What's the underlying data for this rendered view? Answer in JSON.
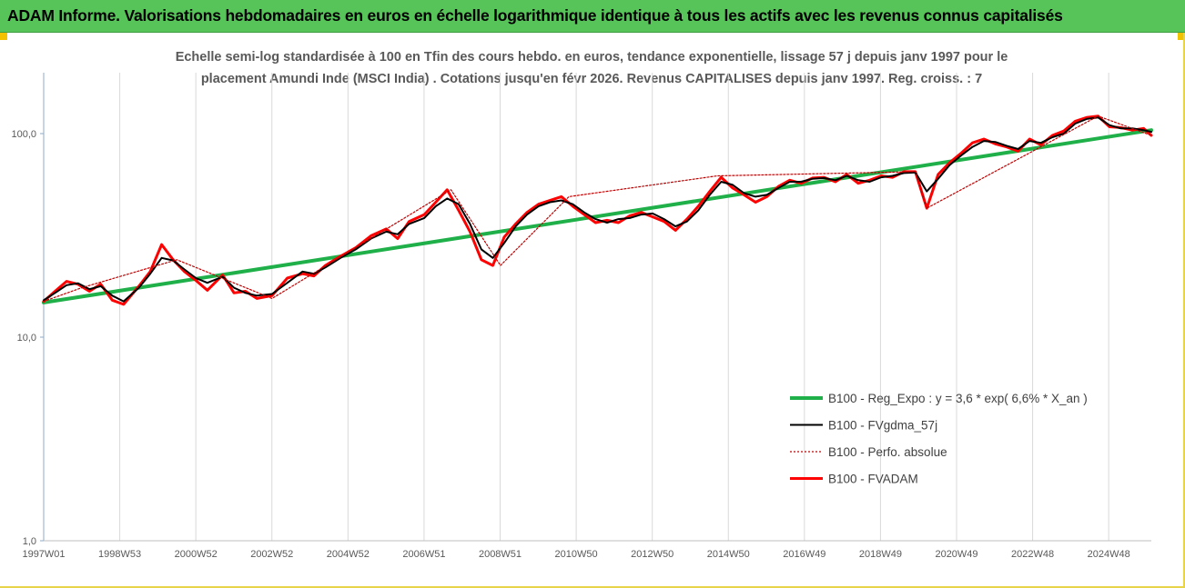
{
  "banner": {
    "title": "ADAM Informe. Valorisations hebdomadaires en euros en échelle logarithmique identique à tous les actifs avec les revenus connus capitalisés",
    "background": "#57c45a"
  },
  "chart_data": {
    "type": "line",
    "title": "",
    "subtitle_lines": [
      "Echelle semi-log standardisée à 100 en Tfin des cours hebdo. en euros, tendance exponentielle, lissage 57 j depuis janv 1997 pour le",
      "placement Amundi Inde (MSCI India) . Cotations jusqu'en févr 2026. Revenus CAPITALISES depuis janv 1997. Reg. croiss. : 7"
    ],
    "y_scale": "log",
    "ylim": [
      1,
      200
    ],
    "yticks": [
      "1,0",
      "10,0",
      "100,0"
    ],
    "xlim": [
      1997.0,
      2026.1
    ],
    "xticks": [
      "1997W01",
      "1998W53",
      "2000W52",
      "2002W52",
      "2004W52",
      "2006W51",
      "2008W51",
      "2010W50",
      "2012W50",
      "2014W50",
      "2016W49",
      "2018W49",
      "2020W49",
      "2022W48",
      "2024W48"
    ],
    "grid": "vertical",
    "legend_position": "bottom-right",
    "series": [
      {
        "name": "B100 - Reg_Expo : y = 3,6 * exp( 6,6% *  X_an )",
        "color": "#1fb04a",
        "style": "solid",
        "x": [
          1997.0,
          2026.1
        ],
        "y": [
          14.8,
          104
        ]
      },
      {
        "name": "B100 - FVgdma_57j",
        "color": "#000000",
        "style": "solid",
        "x": [
          1997.0,
          1997.3,
          1997.6,
          1997.9,
          1998.2,
          1998.5,
          1998.8,
          1999.1,
          1999.5,
          1999.8,
          2000.1,
          2000.4,
          2000.7,
          2001.0,
          2001.3,
          2001.7,
          2002.0,
          2002.3,
          2002.6,
          2003.0,
          2003.4,
          2003.8,
          2004.1,
          2004.4,
          2004.8,
          2005.2,
          2005.6,
          2006.0,
          2006.3,
          2006.6,
          2007.0,
          2007.3,
          2007.6,
          2007.9,
          2008.2,
          2008.5,
          2008.8,
          2009.1,
          2009.4,
          2009.7,
          2010.0,
          2010.3,
          2010.6,
          2010.9,
          2011.2,
          2011.5,
          2011.8,
          2012.1,
          2012.4,
          2012.7,
          2013.0,
          2013.3,
          2013.6,
          2013.9,
          2014.2,
          2014.5,
          2014.8,
          2015.1,
          2015.4,
          2015.7,
          2016.0,
          2016.3,
          2016.6,
          2016.9,
          2017.2,
          2017.5,
          2017.8,
          2018.1,
          2018.4,
          2018.7,
          2019.0,
          2019.3,
          2019.6,
          2019.9,
          2020.2,
          2020.5,
          2020.8,
          2021.1,
          2021.4,
          2021.7,
          2022.0,
          2022.3,
          2022.6,
          2022.9,
          2023.2,
          2023.5,
          2023.8,
          2024.1,
          2024.4,
          2024.7,
          2025.0,
          2025.3,
          2025.6,
          2025.9,
          2026.1
        ],
        "y": [
          15.2,
          16.5,
          18.0,
          18.4,
          17.2,
          17.8,
          16.0,
          15.0,
          17.5,
          20.5,
          24.5,
          23.8,
          21.5,
          19.5,
          18.5,
          19.8,
          17.5,
          16.5,
          16.0,
          16.3,
          18.5,
          21.0,
          20.5,
          22.0,
          24.5,
          27.0,
          30.5,
          33.0,
          32.0,
          36.0,
          38.5,
          44.0,
          48.0,
          45.0,
          36.0,
          27.0,
          24.5,
          29.0,
          35.0,
          40.0,
          44.0,
          46.0,
          47.0,
          45.0,
          41.0,
          38.0,
          36.5,
          38.0,
          38.5,
          40.0,
          40.5,
          38.0,
          35.0,
          37.0,
          42.0,
          50.0,
          58.0,
          56.0,
          51.0,
          49.0,
          50.0,
          54.0,
          58.0,
          58.0,
          60.0,
          60.5,
          59.0,
          62.0,
          59.0,
          58.0,
          61.0,
          62.0,
          64.0,
          64.5,
          52.0,
          60.0,
          70.0,
          78.0,
          86.0,
          92.0,
          91.0,
          87.0,
          84.0,
          92.0,
          90.0,
          96.0,
          100.0,
          112.0,
          118.0,
          120.0,
          110.0,
          106.0,
          106.0,
          104.0,
          102.0
        ]
      },
      {
        "name": "B100 - Perfo. absolue",
        "color": "#c00000",
        "style": "dotted",
        "x": [
          1997.0,
          1998.0,
          2000.5,
          2003.0,
          2007.7,
          2009.0,
          2010.8,
          2014.7,
          2019.9,
          2020.2,
          2024.7,
          2026.1
        ],
        "y": [
          15.0,
          17.5,
          24.0,
          15.5,
          53.0,
          22.5,
          49.0,
          62.0,
          65.0,
          43.0,
          122.0,
          98.0
        ]
      },
      {
        "name": "B100 - FVADAM",
        "color": "#ff0000",
        "style": "solid",
        "x": [
          1997.0,
          1997.3,
          1997.6,
          1997.9,
          1998.2,
          1998.5,
          1998.8,
          1999.1,
          1999.5,
          1999.8,
          2000.1,
          2000.4,
          2000.7,
          2001.0,
          2001.3,
          2001.7,
          2002.0,
          2002.3,
          2002.6,
          2003.0,
          2003.4,
          2003.8,
          2004.1,
          2004.4,
          2004.8,
          2005.2,
          2005.6,
          2006.0,
          2006.3,
          2006.6,
          2007.0,
          2007.3,
          2007.6,
          2007.9,
          2008.2,
          2008.5,
          2008.8,
          2009.1,
          2009.4,
          2009.7,
          2010.0,
          2010.3,
          2010.6,
          2010.9,
          2011.2,
          2011.5,
          2011.8,
          2012.1,
          2012.4,
          2012.7,
          2013.0,
          2013.3,
          2013.6,
          2013.9,
          2014.2,
          2014.5,
          2014.8,
          2015.1,
          2015.4,
          2015.7,
          2016.0,
          2016.3,
          2016.6,
          2016.9,
          2017.2,
          2017.5,
          2017.8,
          2018.1,
          2018.4,
          2018.7,
          2019.0,
          2019.3,
          2019.6,
          2019.9,
          2020.2,
          2020.5,
          2020.8,
          2021.1,
          2021.4,
          2021.7,
          2022.0,
          2022.3,
          2022.6,
          2022.9,
          2023.2,
          2023.5,
          2023.8,
          2024.1,
          2024.4,
          2024.7,
          2025.0,
          2025.3,
          2025.6,
          2025.9,
          2026.1
        ],
        "y": [
          15.0,
          16.8,
          18.8,
          18.2,
          16.8,
          18.2,
          15.2,
          14.5,
          17.8,
          21.0,
          28.5,
          24.0,
          21.0,
          19.0,
          17.0,
          20.2,
          16.5,
          16.8,
          15.5,
          16.0,
          19.5,
          20.5,
          20.0,
          22.5,
          25.0,
          27.5,
          31.5,
          34.0,
          30.5,
          37.0,
          40.0,
          46.0,
          53.0,
          42.0,
          33.0,
          24.0,
          22.5,
          31.0,
          36.0,
          41.0,
          45.0,
          47.0,
          49.0,
          44.0,
          40.0,
          36.5,
          37.5,
          36.5,
          39.5,
          41.0,
          39.0,
          37.0,
          33.5,
          38.0,
          44.0,
          52.0,
          61.0,
          54.0,
          50.0,
          46.0,
          49.0,
          55.0,
          59.0,
          57.0,
          60.5,
          61.0,
          58.0,
          63.0,
          57.0,
          59.0,
          62.0,
          61.0,
          65.0,
          65.0,
          43.0,
          63.0,
          72.0,
          80.0,
          90.0,
          94.0,
          89.0,
          86.0,
          82.0,
          94.0,
          88.0,
          98.0,
          103.0,
          115.0,
          120.0,
          122.0,
          108.0,
          107.0,
          104.0,
          106.0,
          98.0
        ]
      }
    ]
  }
}
